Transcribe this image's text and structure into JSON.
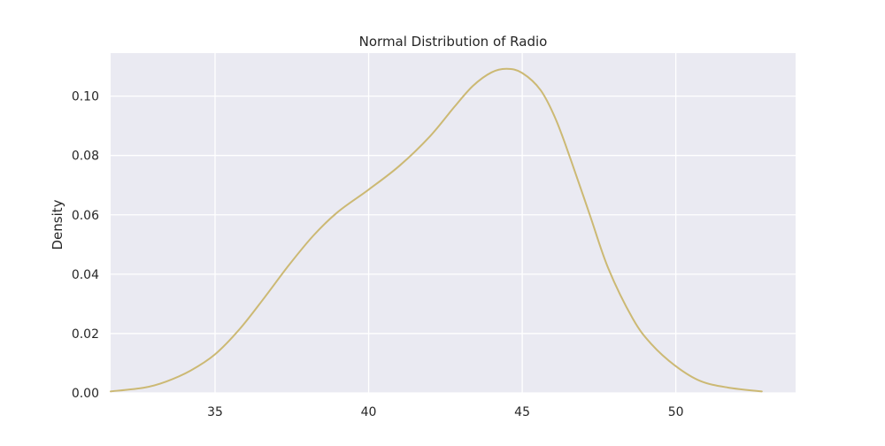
{
  "chart_data": {
    "type": "line",
    "title": "Normal Distribution of Radio",
    "xlabel": "",
    "ylabel": "Density",
    "xlim": [
      31.6,
      53.9
    ],
    "ylim": [
      0.0,
      0.1145
    ],
    "x_ticks": [
      35,
      40,
      45,
      50
    ],
    "x_tick_labels": [
      "35",
      "40",
      "45",
      "50"
    ],
    "y_ticks": [
      0.0,
      0.02,
      0.04,
      0.06,
      0.08,
      0.1
    ],
    "y_tick_labels": [
      "0.00",
      "0.02",
      "0.04",
      "0.06",
      "0.08",
      "0.10"
    ],
    "grid": true,
    "legend": "none",
    "background_color": "#eaeaf2",
    "grid_color": "#ffffff",
    "series": [
      {
        "color": "#ccb974",
        "x": [
          31.6,
          32.7,
          33.4,
          34.2,
          35.0,
          35.8,
          36.6,
          37.4,
          38.2,
          39.0,
          40.0,
          41.0,
          42.0,
          42.8,
          43.4,
          44.0,
          44.5,
          45.0,
          45.6,
          46.1,
          46.6,
          47.2,
          47.8,
          48.6,
          49.2,
          50.0,
          50.8,
          51.7,
          52.8
        ],
        "y": [
          0.0005,
          0.0018,
          0.0038,
          0.0075,
          0.013,
          0.0215,
          0.032,
          0.043,
          0.053,
          0.061,
          0.0685,
          0.0765,
          0.0865,
          0.0965,
          0.1035,
          0.108,
          0.1092,
          0.1078,
          0.102,
          0.092,
          0.078,
          0.06,
          0.042,
          0.025,
          0.0165,
          0.009,
          0.004,
          0.0018,
          0.0005
        ]
      }
    ]
  }
}
